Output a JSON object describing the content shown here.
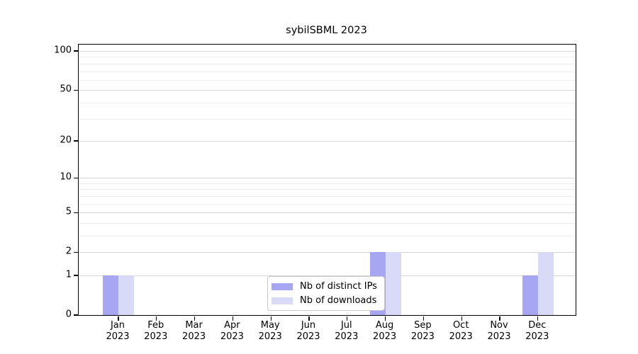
{
  "chart_data": {
    "type": "bar",
    "title": "sybilSBML 2023",
    "categories": [
      "Jan 2023",
      "Feb 2023",
      "Mar 2023",
      "Apr 2023",
      "May 2023",
      "Jun 2023",
      "Jul 2023",
      "Aug 2023",
      "Sep 2023",
      "Oct 2023",
      "Nov 2023",
      "Dec 2023"
    ],
    "series": [
      {
        "name": "Nb of distinct IPs",
        "color": "#a6a6f2",
        "values": [
          1,
          0,
          0,
          0,
          0,
          0,
          0,
          2,
          0,
          0,
          0,
          1
        ]
      },
      {
        "name": "Nb of downloads",
        "color": "#d9d9f8",
        "values": [
          1,
          0,
          0,
          0,
          0,
          0,
          0,
          2,
          0,
          0,
          0,
          2
        ]
      }
    ],
    "xlabel": "",
    "ylabel": "",
    "y_axis": {
      "scale": "log1p",
      "ticks": [
        0,
        1,
        2,
        5,
        10,
        20,
        50,
        100
      ],
      "minor_gridlines": [
        3,
        4,
        6,
        7,
        8,
        9,
        30,
        40,
        60,
        70,
        80,
        90
      ],
      "range_max": 112
    },
    "legend": {
      "position": "lower center"
    },
    "grid": "horizontal",
    "colors": {
      "major_grid": "#d6d6d6",
      "minor_grid": "#ededed",
      "axis": "#000000",
      "text": "#000000"
    }
  }
}
